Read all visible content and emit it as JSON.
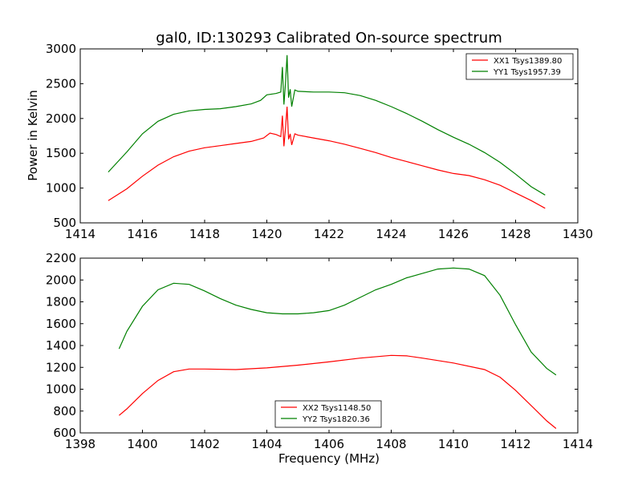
{
  "figure": {
    "title": "gal0, ID:130293 Calibrated On-source spectrum",
    "xlabel": "Frequency (MHz)",
    "ylabel": "Power in Kelvin"
  },
  "chart_data": [
    {
      "type": "line",
      "title": "gal0, ID:130293 Calibrated On-source spectrum",
      "xlabel": "",
      "ylabel": "Power in Kelvin",
      "xlim": [
        1414,
        1430
      ],
      "ylim": [
        500,
        3000
      ],
      "xticks": [
        1414,
        1416,
        1418,
        1420,
        1422,
        1424,
        1426,
        1428,
        1430
      ],
      "yticks": [
        500,
        1000,
        1500,
        2000,
        2500,
        3000
      ],
      "grid": false,
      "legend": "top-right",
      "series": [
        {
          "name": "XX1 Tsys1389.80",
          "color": "#ff0000",
          "x": [
            1414.9,
            1415.5,
            1416,
            1416.5,
            1417,
            1417.5,
            1418,
            1418.5,
            1419,
            1419.5,
            1419.9,
            1420.1,
            1420.3,
            1420.45,
            1420.5,
            1420.55,
            1420.6,
            1420.65,
            1420.7,
            1420.75,
            1420.8,
            1420.9,
            1421,
            1421.5,
            1422,
            1422.5,
            1423,
            1423.5,
            1424,
            1424.5,
            1425,
            1425.5,
            1426,
            1426.5,
            1427,
            1427.5,
            1428,
            1428.5,
            1428.95
          ],
          "y": [
            820,
            990,
            1170,
            1330,
            1450,
            1530,
            1580,
            1610,
            1640,
            1670,
            1720,
            1790,
            1770,
            1740,
            2040,
            1600,
            1850,
            2170,
            1700,
            1780,
            1620,
            1780,
            1760,
            1720,
            1680,
            1630,
            1570,
            1510,
            1440,
            1380,
            1320,
            1260,
            1210,
            1180,
            1120,
            1040,
            930,
            820,
            710
          ]
        },
        {
          "name": "YY1 Tsys1957.39",
          "color": "#008000",
          "x": [
            1414.9,
            1415.5,
            1416,
            1416.5,
            1417,
            1417.5,
            1418,
            1418.5,
            1419,
            1419.5,
            1419.8,
            1420,
            1420.3,
            1420.45,
            1420.5,
            1420.55,
            1420.6,
            1420.65,
            1420.7,
            1420.75,
            1420.8,
            1420.9,
            1421,
            1421.5,
            1422,
            1422.5,
            1423,
            1423.5,
            1424,
            1424.5,
            1425,
            1425.5,
            1426,
            1426.5,
            1427,
            1427.5,
            1428,
            1428.5,
            1428.95
          ],
          "y": [
            1230,
            1520,
            1780,
            1960,
            2060,
            2110,
            2130,
            2140,
            2170,
            2210,
            2260,
            2340,
            2360,
            2380,
            2740,
            2200,
            2500,
            2910,
            2300,
            2420,
            2170,
            2410,
            2390,
            2380,
            2380,
            2370,
            2330,
            2260,
            2170,
            2070,
            1960,
            1840,
            1730,
            1630,
            1510,
            1370,
            1200,
            1020,
            900
          ]
        }
      ]
    },
    {
      "type": "line",
      "title": "",
      "xlabel": "Frequency (MHz)",
      "ylabel": "",
      "xlim": [
        1398,
        1414
      ],
      "ylim": [
        600,
        2200
      ],
      "xticks": [
        1398,
        1400,
        1402,
        1404,
        1406,
        1408,
        1410,
        1412,
        1414
      ],
      "yticks": [
        600,
        800,
        1000,
        1200,
        1400,
        1600,
        1800,
        2000,
        2200
      ],
      "grid": false,
      "legend": "lower-center",
      "series": [
        {
          "name": "XX2 Tsys1148.50",
          "color": "#ff0000",
          "x": [
            1399.25,
            1399.5,
            1400,
            1400.5,
            1401,
            1401.5,
            1402,
            1403,
            1404,
            1405,
            1406,
            1407,
            1408,
            1408.5,
            1409,
            1410,
            1411,
            1411.5,
            1412,
            1412.5,
            1413,
            1413.3
          ],
          "y": [
            760,
            820,
            960,
            1080,
            1160,
            1185,
            1185,
            1180,
            1195,
            1220,
            1250,
            1285,
            1310,
            1305,
            1285,
            1240,
            1180,
            1110,
            990,
            850,
            710,
            640
          ]
        },
        {
          "name": "YY2 Tsys1820.36",
          "color": "#008000",
          "x": [
            1399.25,
            1399.5,
            1400,
            1400.5,
            1401,
            1401.5,
            1402,
            1402.5,
            1403,
            1403.5,
            1404,
            1404.5,
            1405,
            1405.5,
            1406,
            1406.5,
            1407,
            1407.5,
            1408,
            1408.5,
            1409,
            1409.5,
            1410,
            1410.5,
            1411,
            1411.5,
            1412,
            1412.5,
            1413,
            1413.3
          ],
          "y": [
            1370,
            1530,
            1760,
            1910,
            1970,
            1960,
            1900,
            1830,
            1770,
            1730,
            1700,
            1690,
            1690,
            1700,
            1720,
            1770,
            1840,
            1910,
            1960,
            2020,
            2060,
            2100,
            2110,
            2100,
            2040,
            1860,
            1590,
            1340,
            1190,
            1130
          ]
        }
      ]
    }
  ]
}
